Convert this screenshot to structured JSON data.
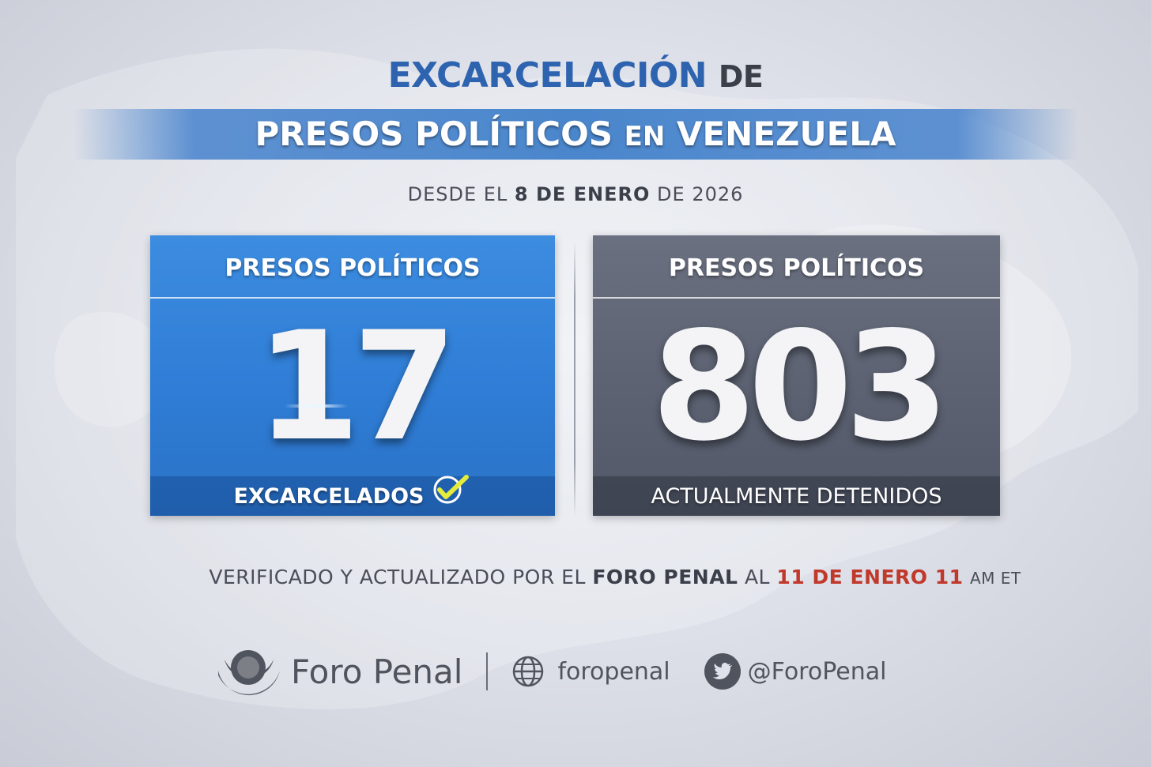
{
  "title": {
    "line1_main": "EXCARCELACIÓN",
    "line1_suffix": "DE",
    "banner_part1": "PRESOS POLÍTICOS",
    "banner_part2": "EN",
    "banner_part3": "VENEZUELA"
  },
  "date_line": {
    "prefix": "DESDE EL",
    "date": "8 DE ENERO",
    "suffix": "DE 2026"
  },
  "panels": [
    {
      "header": "PRESOS POLÍTICOS",
      "value": "17",
      "footer": "EXCARCELADOS",
      "color": "#2f7dd6",
      "icon": "check-icon"
    },
    {
      "header": "PRESOS POLÍTICOS",
      "value": "803",
      "footer": "ACTUALMENTE DETENIDOS",
      "color": "#5c6272"
    }
  ],
  "verification": {
    "prefix": "VERIFICADO Y ACTUALIZADO POR EL",
    "org": "FORO PENAL",
    "mid": "AL",
    "date": "11 DE ENERO 11",
    "suffix": "AM ET",
    "highlight_color": "#c0392b"
  },
  "footer": {
    "brand": "Foro Penal",
    "website": "foropenal",
    "twitter": "@ForoPenal",
    "icons": [
      "foro-penal-logo-icon",
      "globe-icon",
      "twitter-icon"
    ]
  }
}
